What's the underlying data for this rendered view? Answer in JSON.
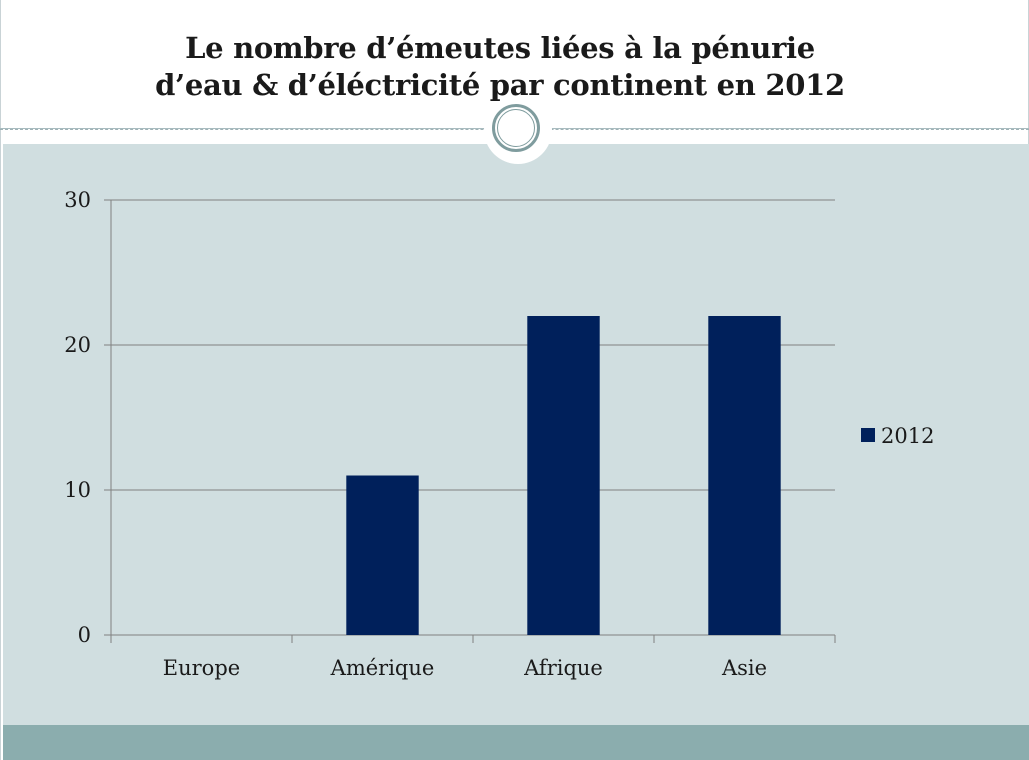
{
  "slide": {
    "title_line1": "Le nombre d’émeutes liées à la pénurie",
    "title_line2": "d’eau & d’éléctricité par continent en 2012"
  },
  "colors": {
    "bar": "#00205b",
    "panel": "#d0dee0",
    "footer": "#8badae",
    "gridline": "#808080",
    "ornament": "#7f9c9e"
  },
  "chart_data": {
    "type": "bar",
    "title": "Le nombre d’émeutes liées à la pénurie d’eau & d’éléctricité par continent en 2012",
    "categories": [
      "Europe",
      "Amérique",
      "Afrique",
      "Asie"
    ],
    "series": [
      {
        "name": "2012",
        "values": [
          0,
          11,
          22,
          22
        ]
      }
    ],
    "ylim": [
      0,
      30
    ],
    "yticks": [
      0,
      10,
      20,
      30
    ],
    "grid": true,
    "legend": "right"
  }
}
